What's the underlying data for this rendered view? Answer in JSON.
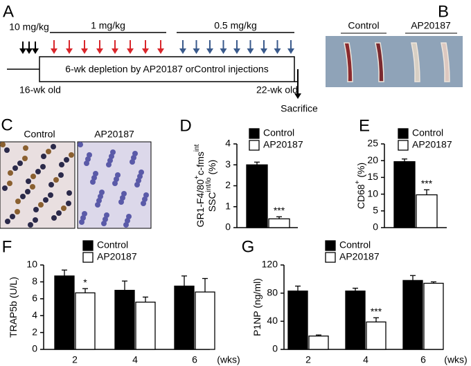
{
  "figure": {
    "panel_labels": [
      "A",
      "B",
      "C",
      "D",
      "E",
      "F",
      "G"
    ],
    "schedule": {
      "doses": [
        "10 mg/kg",
        "1 mg/kg",
        "0.5 mg/kg"
      ],
      "box": "6-wk depletion by AP20187 orControl injections",
      "start": "16-wk old",
      "end": "22-wk old",
      "outcome": "Sacrifice"
    },
    "bones": {
      "labels": [
        "Control",
        "AP20187"
      ]
    },
    "histology": {
      "labels": [
        "Control",
        "AP20187"
      ]
    }
  },
  "chart_data": [
    {
      "type": "bar",
      "ylabel_lines": [
        [
          "GR1-F4/80",
          "+",
          "c-fms",
          "int"
        ],
        [
          "SSC",
          "int/lo",
          " (%)"
        ]
      ],
      "categories": [
        null
      ],
      "ylim": [
        0,
        4
      ],
      "yticks": [
        0,
        1,
        2,
        3,
        4
      ],
      "series": [
        {
          "name": "Control",
          "color": "#000000",
          "values": [
            3.0
          ],
          "errors": [
            0.13
          ]
        },
        {
          "name": "AP20187",
          "color": "#ffffff",
          "values": [
            0.42
          ],
          "errors": [
            0.1
          ]
        }
      ],
      "annotations": [
        {
          "text": "***",
          "series": 1,
          "index": 0
        }
      ]
    },
    {
      "type": "bar",
      "ylabel_lines": [
        [
          "CD68",
          "+",
          " (%)"
        ]
      ],
      "categories": [
        null
      ],
      "ylim": [
        0,
        25
      ],
      "yticks": [
        0,
        5,
        10,
        15,
        20,
        25
      ],
      "series": [
        {
          "name": "Control",
          "color": "#000000",
          "values": [
            19.7
          ],
          "errors": [
            0.8
          ]
        },
        {
          "name": "AP20187",
          "color": "#ffffff",
          "values": [
            9.8
          ],
          "errors": [
            1.5
          ]
        }
      ],
      "annotations": [
        {
          "text": "***",
          "series": 1,
          "index": 0
        }
      ]
    },
    {
      "type": "bar",
      "ylabel_lines": [
        [
          "TRAP5b (U/L)"
        ]
      ],
      "x_unit": "(wks)",
      "categories": [
        "2",
        "4",
        "6"
      ],
      "ylim": [
        0,
        10
      ],
      "yticks": [
        0,
        2,
        4,
        6,
        8,
        10
      ],
      "series": [
        {
          "name": "Control",
          "color": "#000000",
          "values": [
            8.7,
            7.0,
            7.5
          ],
          "errors": [
            0.7,
            1.1,
            1.2
          ]
        },
        {
          "name": "AP20187",
          "color": "#ffffff",
          "values": [
            6.7,
            5.6,
            6.8
          ],
          "errors": [
            0.5,
            0.6,
            1.6
          ]
        }
      ],
      "annotations": [
        {
          "text": "*",
          "series": 1,
          "index": 0
        }
      ]
    },
    {
      "type": "bar",
      "ylabel_lines": [
        [
          "P1NP (ng/ml)"
        ]
      ],
      "x_unit": "(wks)",
      "categories": [
        "2",
        "4",
        "6"
      ],
      "ylim": [
        0,
        120
      ],
      "yticks": [
        0,
        40,
        80,
        120
      ],
      "series": [
        {
          "name": "Control",
          "color": "#000000",
          "values": [
            83,
            83,
            98
          ],
          "errors": [
            7,
            4,
            7
          ]
        },
        {
          "name": "AP20187",
          "color": "#ffffff",
          "values": [
            19,
            39,
            94
          ],
          "errors": [
            1.5,
            6,
            2
          ]
        }
      ],
      "annotations": [
        {
          "text": "***",
          "series": 1,
          "index": 1
        }
      ]
    }
  ]
}
